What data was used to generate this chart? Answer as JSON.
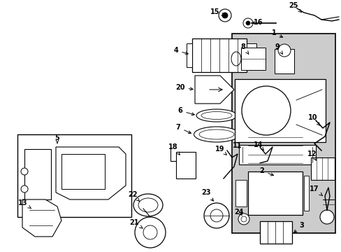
{
  "bg_color": "#ffffff",
  "line_color": "#000000",
  "shade_color": "#cccccc",
  "fig_width": 4.89,
  "fig_height": 3.6,
  "dpi": 100
}
